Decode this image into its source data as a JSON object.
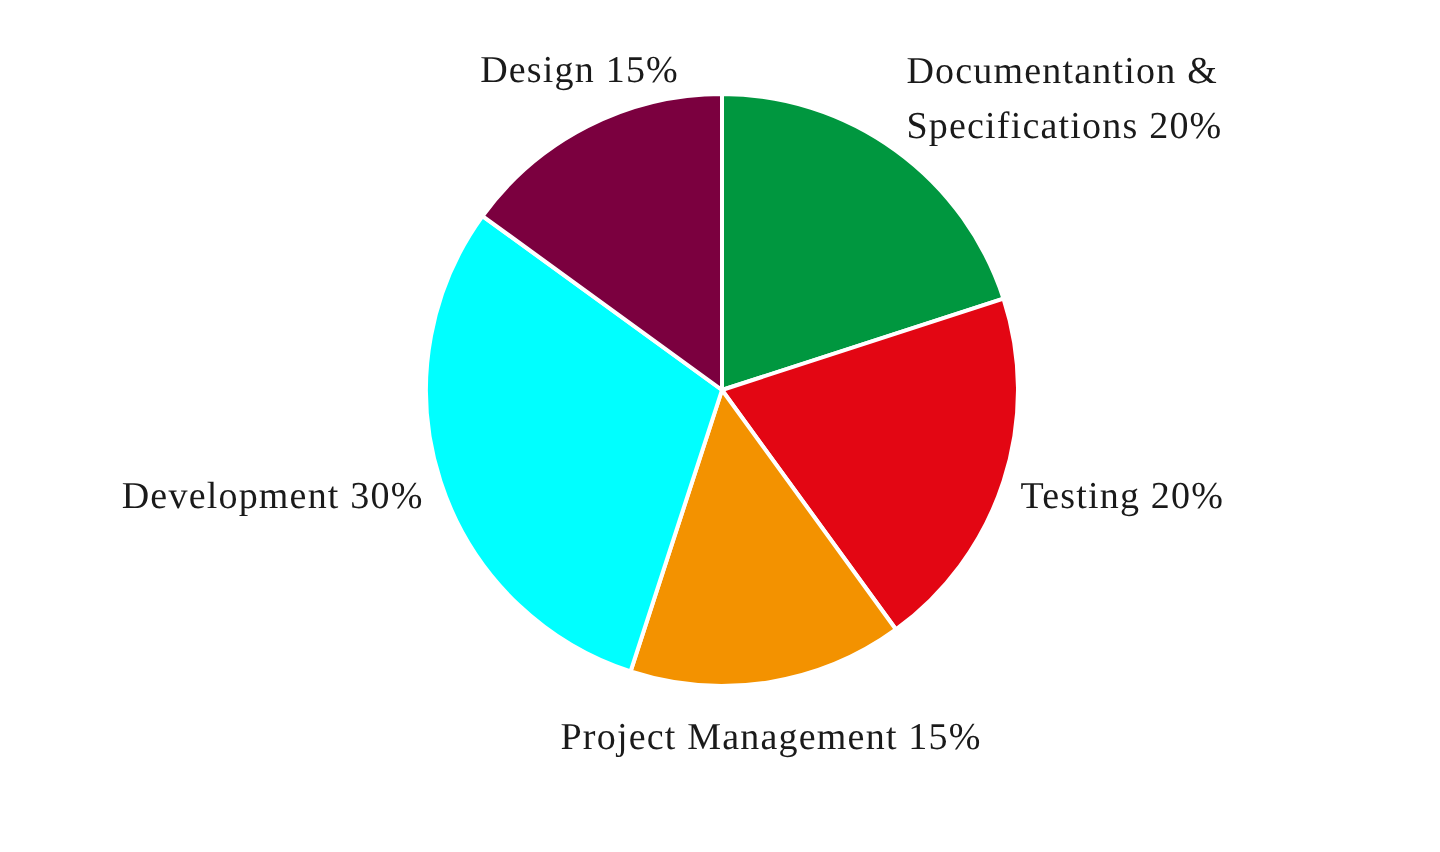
{
  "chart_data": {
    "type": "pie",
    "categories": [
      "Documentantion & Specifications",
      "Testing",
      "Project Management",
      "Development",
      "Design"
    ],
    "values": [
      20,
      20,
      15,
      30,
      15
    ],
    "colors": [
      "#00973f",
      "#e30613",
      "#f39200",
      "#00ffff",
      "#7b003f"
    ],
    "value_labels": [
      "20%",
      "20%",
      "15%",
      "30%",
      "15%"
    ]
  }
}
